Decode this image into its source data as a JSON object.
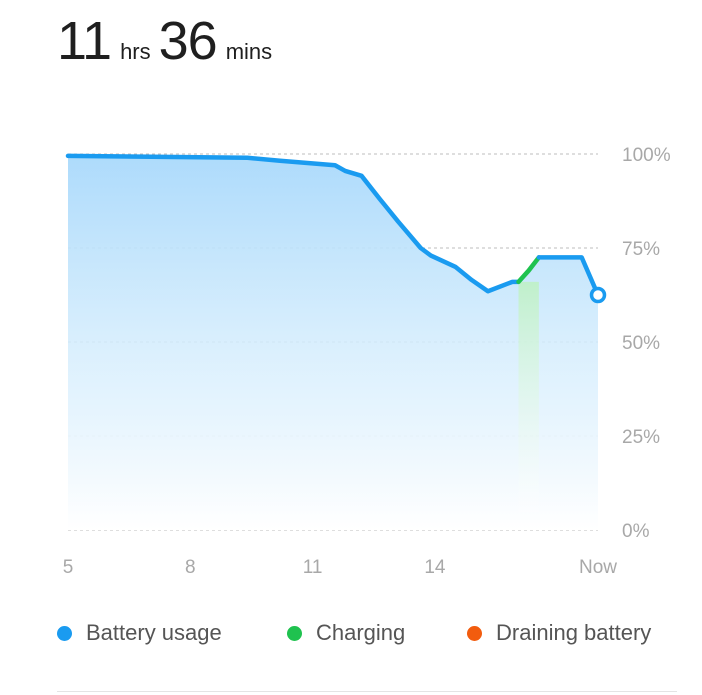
{
  "header": {
    "hours_value": "11",
    "hours_unit": "hrs",
    "minutes_value": "36",
    "minutes_unit": "mins"
  },
  "legend": {
    "items": [
      {
        "label": "Battery usage",
        "color": "#1a9bf0"
      },
      {
        "label": "Charging",
        "color": "#1fc24f"
      },
      {
        "label": "Draining battery",
        "color": "#f25c0e"
      }
    ]
  },
  "chart_data": {
    "type": "line",
    "x_tick_labels": [
      "5",
      "8",
      "11",
      "14",
      "Now"
    ],
    "x_ticks": [
      5,
      8,
      11,
      14,
      18
    ],
    "y_tick_labels": [
      "100%",
      "75%",
      "50%",
      "25%",
      "0%"
    ],
    "y_ticks": [
      100,
      75,
      50,
      25,
      0
    ],
    "xlim": [
      5,
      18
    ],
    "ylim": [
      0,
      100
    ],
    "grid": true,
    "legend_position": "bottom",
    "series": [
      {
        "name": "Battery usage",
        "color": "#1a9bf0",
        "x": [
          5.0,
          9.4,
          10.2,
          11.55,
          11.8,
          12.2,
          12.65,
          13.1,
          13.65,
          13.9,
          14.5,
          14.9,
          15.3,
          15.9,
          16.05
        ],
        "y": [
          99.5,
          99.0,
          98.2,
          97.0,
          95.5,
          94.2,
          88.0,
          82.0,
          75.0,
          73.0,
          70.0,
          66.5,
          63.5,
          66.0,
          66.0
        ]
      },
      {
        "name": "Charging",
        "color": "#1fc24f",
        "x": [
          16.05,
          16.3,
          16.55
        ],
        "y": [
          66.0,
          69.0,
          72.5
        ]
      },
      {
        "name": "Battery usage",
        "color": "#1a9bf0",
        "x": [
          16.55,
          17.2,
          17.6,
          18.0
        ],
        "y": [
          72.5,
          72.5,
          72.5,
          62.5
        ]
      }
    ]
  }
}
